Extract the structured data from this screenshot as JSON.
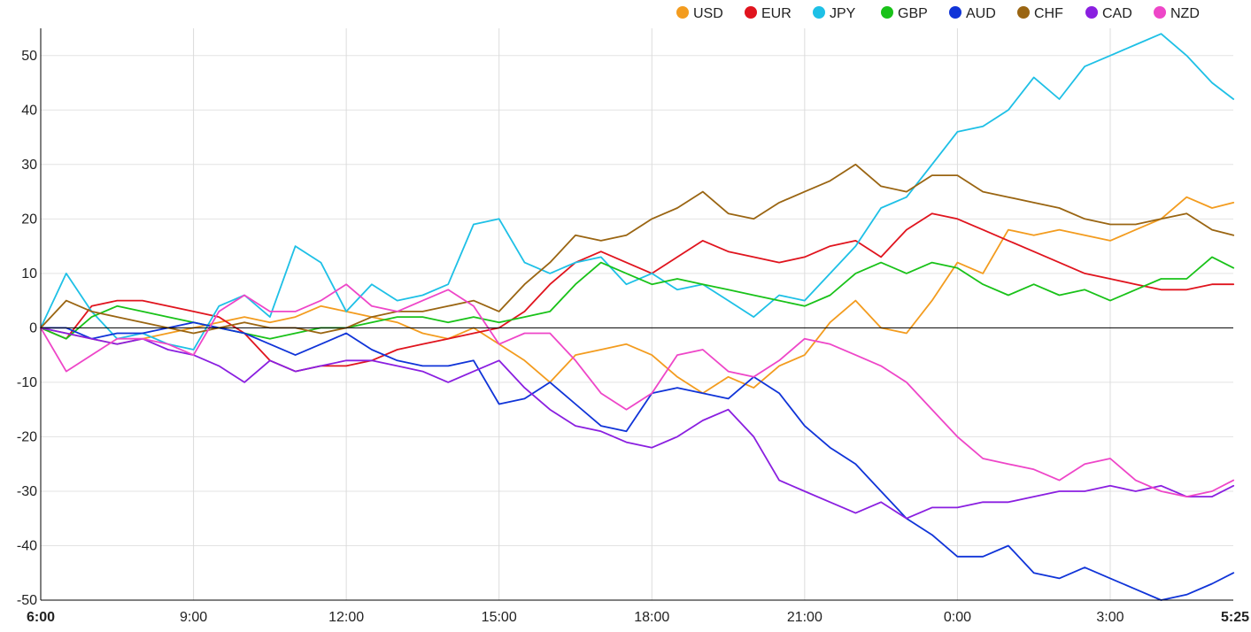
{
  "chart_data": {
    "type": "line",
    "title": "",
    "xlabel": "",
    "ylabel": "",
    "x_ticks": [
      {
        "label": "6:00",
        "hours": 0,
        "bold": true
      },
      {
        "label": "9:00",
        "hours": 3,
        "bold": false
      },
      {
        "label": "12:00",
        "hours": 6,
        "bold": false
      },
      {
        "label": "15:00",
        "hours": 9,
        "bold": false
      },
      {
        "label": "18:00",
        "hours": 12,
        "bold": false
      },
      {
        "label": "21:00",
        "hours": 15,
        "bold": false
      },
      {
        "label": "0:00",
        "hours": 18,
        "bold": false
      },
      {
        "label": "3:00",
        "hours": 21,
        "bold": false
      },
      {
        "label": "5:25",
        "hours": 23.4167,
        "bold": true
      }
    ],
    "xlim_hours": [
      0,
      23.4167
    ],
    "ylim": [
      -50,
      55
    ],
    "y_ticks": [
      50,
      40,
      30,
      20,
      10,
      0,
      -10,
      -20,
      -30,
      -40,
      -50
    ],
    "grid": true,
    "legend_position": "top-right",
    "series": [
      {
        "name": "USD",
        "color": "#f39c1f",
        "x": [
          0,
          0.5,
          1,
          1.5,
          2,
          2.5,
          3,
          3.5,
          4,
          4.5,
          5,
          5.5,
          6,
          6.5,
          7,
          7.5,
          8,
          8.5,
          9,
          9.5,
          10,
          10.5,
          11,
          11.5,
          12,
          12.5,
          13,
          13.5,
          14,
          14.5,
          15,
          15.5,
          16,
          16.5,
          17,
          17.5,
          18,
          18.5,
          19,
          19.5,
          20,
          20.5,
          21,
          21.5,
          22,
          22.5,
          23,
          23.42
        ],
        "y": [
          0,
          -1,
          -2,
          -3,
          -2,
          -1,
          0,
          1,
          2,
          1,
          2,
          4,
          3,
          2,
          1,
          -1,
          -2,
          0,
          -3,
          -6,
          -10,
          -5,
          -4,
          -3,
          -5,
          -9,
          -12,
          -9,
          -11,
          -7,
          -5,
          1,
          5,
          0,
          -1,
          5,
          12,
          10,
          18,
          17,
          18,
          17,
          16,
          18,
          20,
          24,
          22,
          23
        ]
      },
      {
        "name": "EUR",
        "color": "#e0141e",
        "x": [
          0,
          0.5,
          1,
          1.5,
          2,
          2.5,
          3,
          3.5,
          4,
          4.5,
          5,
          5.5,
          6,
          6.5,
          7,
          7.5,
          8,
          8.5,
          9,
          9.5,
          10,
          10.5,
          11,
          11.5,
          12,
          12.5,
          13,
          13.5,
          14,
          14.5,
          15,
          15.5,
          16,
          16.5,
          17,
          17.5,
          18,
          18.5,
          19,
          19.5,
          20,
          20.5,
          21,
          21.5,
          22,
          22.5,
          23,
          23.42
        ],
        "y": [
          0,
          -2,
          4,
          5,
          5,
          4,
          3,
          2,
          -1,
          -6,
          -8,
          -7,
          -7,
          -6,
          -4,
          -3,
          -2,
          -1,
          0,
          3,
          8,
          12,
          14,
          12,
          10,
          13,
          16,
          14,
          13,
          12,
          13,
          15,
          16,
          13,
          18,
          21,
          20,
          18,
          16,
          14,
          12,
          10,
          9,
          8,
          7,
          7,
          8,
          8
        ]
      },
      {
        "name": "JPY",
        "color": "#1ec0e6",
        "x": [
          0,
          0.5,
          1,
          1.5,
          2,
          2.5,
          3,
          3.5,
          4,
          4.5,
          5,
          5.5,
          6,
          6.5,
          7,
          7.5,
          8,
          8.5,
          9,
          9.5,
          10,
          10.5,
          11,
          11.5,
          12,
          12.5,
          13,
          13.5,
          14,
          14.5,
          15,
          15.5,
          16,
          16.5,
          17,
          17.5,
          18,
          18.5,
          19,
          19.5,
          20,
          20.5,
          21,
          21.5,
          22,
          22.5,
          23,
          23.42
        ],
        "y": [
          0,
          10,
          3,
          -2,
          -1,
          -3,
          -4,
          4,
          6,
          2,
          15,
          12,
          3,
          8,
          5,
          6,
          8,
          19,
          20,
          12,
          10,
          12,
          13,
          8,
          10,
          7,
          8,
          5,
          2,
          6,
          5,
          10,
          15,
          22,
          24,
          30,
          36,
          37,
          40,
          46,
          42,
          48,
          50,
          52,
          54,
          50,
          45,
          42
        ]
      },
      {
        "name": "GBP",
        "color": "#19c219",
        "x": [
          0,
          0.5,
          1,
          1.5,
          2,
          2.5,
          3,
          3.5,
          4,
          4.5,
          5,
          5.5,
          6,
          6.5,
          7,
          7.5,
          8,
          8.5,
          9,
          9.5,
          10,
          10.5,
          11,
          11.5,
          12,
          12.5,
          13,
          13.5,
          14,
          14.5,
          15,
          15.5,
          16,
          16.5,
          17,
          17.5,
          18,
          18.5,
          19,
          19.5,
          20,
          20.5,
          21,
          21.5,
          22,
          22.5,
          23,
          23.42
        ],
        "y": [
          0,
          -2,
          2,
          4,
          3,
          2,
          1,
          0,
          -1,
          -2,
          -1,
          0,
          0,
          1,
          2,
          2,
          1,
          2,
          1,
          2,
          3,
          8,
          12,
          10,
          8,
          9,
          8,
          7,
          6,
          5,
          4,
          6,
          10,
          12,
          10,
          12,
          11,
          8,
          6,
          8,
          6,
          7,
          5,
          7,
          9,
          9,
          13,
          11
        ]
      },
      {
        "name": "AUD",
        "color": "#1034d8",
        "x": [
          0,
          0.5,
          1,
          1.5,
          2,
          2.5,
          3,
          3.5,
          4,
          4.5,
          5,
          5.5,
          6,
          6.5,
          7,
          7.5,
          8,
          8.5,
          9,
          9.5,
          10,
          10.5,
          11,
          11.5,
          12,
          12.5,
          13,
          13.5,
          14,
          14.5,
          15,
          15.5,
          16,
          16.5,
          17,
          17.5,
          18,
          18.5,
          19,
          19.5,
          20,
          20.5,
          21,
          21.5,
          22,
          22.5,
          23,
          23.42
        ],
        "y": [
          0,
          0,
          -2,
          -1,
          -1,
          0,
          1,
          0,
          -1,
          -3,
          -5,
          -3,
          -1,
          -4,
          -6,
          -7,
          -7,
          -6,
          -14,
          -13,
          -10,
          -14,
          -18,
          -19,
          -12,
          -11,
          -12,
          -13,
          -9,
          -12,
          -18,
          -22,
          -25,
          -30,
          -35,
          -38,
          -42,
          -42,
          -40,
          -45,
          -46,
          -44,
          -46,
          -48,
          -50,
          -49,
          -47,
          -45
        ]
      },
      {
        "name": "CHF",
        "color": "#9a6512",
        "x": [
          0,
          0.5,
          1,
          1.5,
          2,
          2.5,
          3,
          3.5,
          4,
          4.5,
          5,
          5.5,
          6,
          6.5,
          7,
          7.5,
          8,
          8.5,
          9,
          9.5,
          10,
          10.5,
          11,
          11.5,
          12,
          12.5,
          13,
          13.5,
          14,
          14.5,
          15,
          15.5,
          16,
          16.5,
          17,
          17.5,
          18,
          18.5,
          19,
          19.5,
          20,
          20.5,
          21,
          21.5,
          22,
          22.5,
          23,
          23.42
        ],
        "y": [
          0,
          5,
          3,
          2,
          1,
          0,
          -1,
          0,
          1,
          0,
          0,
          -1,
          0,
          2,
          3,
          3,
          4,
          5,
          3,
          8,
          12,
          17,
          16,
          17,
          20,
          22,
          25,
          21,
          20,
          23,
          25,
          27,
          30,
          26,
          25,
          28,
          28,
          25,
          24,
          23,
          22,
          20,
          19,
          19,
          20,
          21,
          18,
          17
        ]
      },
      {
        "name": "CAD",
        "color": "#8a1fe0",
        "x": [
          0,
          0.5,
          1,
          1.5,
          2,
          2.5,
          3,
          3.5,
          4,
          4.5,
          5,
          5.5,
          6,
          6.5,
          7,
          7.5,
          8,
          8.5,
          9,
          9.5,
          10,
          10.5,
          11,
          11.5,
          12,
          12.5,
          13,
          13.5,
          14,
          14.5,
          15,
          15.5,
          16,
          16.5,
          17,
          17.5,
          18,
          18.5,
          19,
          19.5,
          20,
          20.5,
          21,
          21.5,
          22,
          22.5,
          23,
          23.42
        ],
        "y": [
          0,
          -1,
          -2,
          -3,
          -2,
          -4,
          -5,
          -7,
          -10,
          -6,
          -8,
          -7,
          -6,
          -6,
          -7,
          -8,
          -10,
          -8,
          -6,
          -11,
          -15,
          -18,
          -19,
          -21,
          -22,
          -20,
          -17,
          -15,
          -20,
          -28,
          -30,
          -32,
          -34,
          -32,
          -35,
          -33,
          -33,
          -32,
          -32,
          -31,
          -30,
          -30,
          -29,
          -30,
          -29,
          -31,
          -31,
          -29
        ]
      },
      {
        "name": "NZD",
        "color": "#ee46c8",
        "x": [
          0,
          0.5,
          1,
          1.5,
          2,
          2.5,
          3,
          3.5,
          4,
          4.5,
          5,
          5.5,
          6,
          6.5,
          7,
          7.5,
          8,
          8.5,
          9,
          9.5,
          10,
          10.5,
          11,
          11.5,
          12,
          12.5,
          13,
          13.5,
          14,
          14.5,
          15,
          15.5,
          16,
          16.5,
          17,
          17.5,
          18,
          18.5,
          19,
          19.5,
          20,
          20.5,
          21,
          21.5,
          22,
          22.5,
          23,
          23.42
        ],
        "y": [
          0,
          -8,
          -5,
          -2,
          -2,
          -3,
          -5,
          3,
          6,
          3,
          3,
          5,
          8,
          4,
          3,
          5,
          7,
          4,
          -3,
          -1,
          -1,
          -6,
          -12,
          -15,
          -12,
          -5,
          -4,
          -8,
          -9,
          -6,
          -2,
          -3,
          -5,
          -7,
          -10,
          -15,
          -20,
          -24,
          -25,
          -26,
          -28,
          -25,
          -24,
          -28,
          -30,
          -31,
          -30,
          -28
        ]
      }
    ]
  }
}
